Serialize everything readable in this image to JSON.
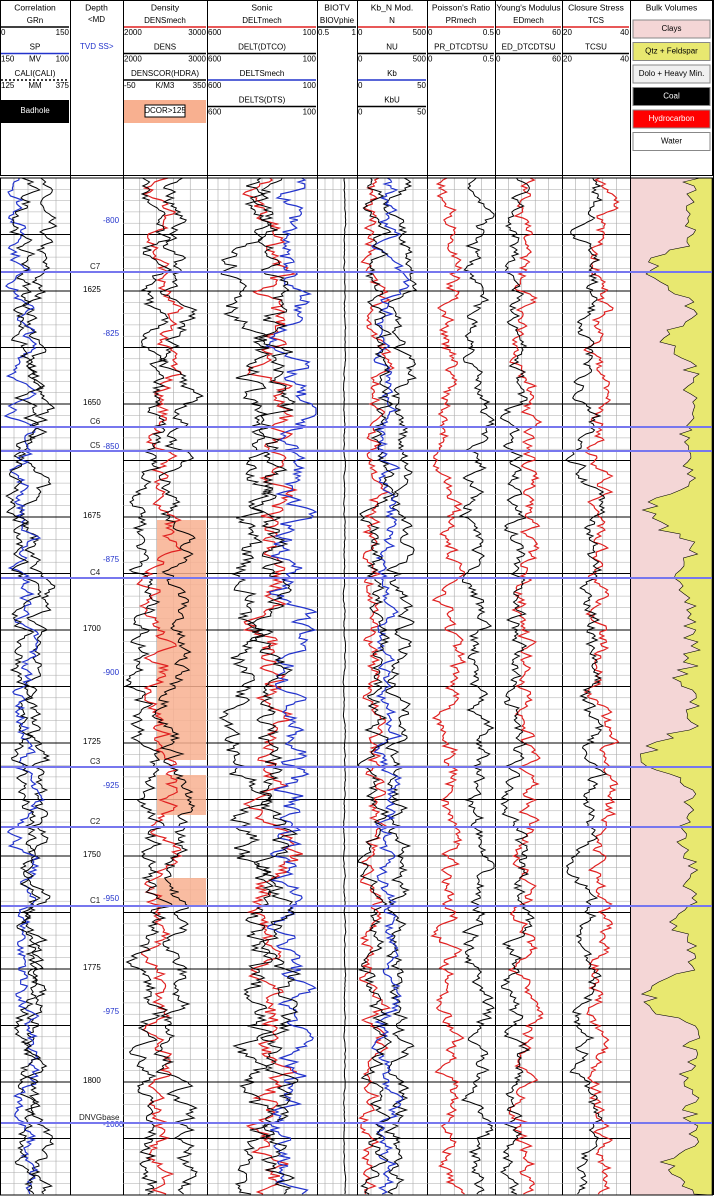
{
  "tracks": [
    {
      "title": "Correlation",
      "curves": [
        {
          "name": "GRn",
          "left": 0,
          "right": 150,
          "color": "#000"
        },
        {
          "name": "SP",
          "left": 150,
          "unit": "MV",
          "right": 100,
          "color": "#2233cc"
        },
        {
          "name": "CALI(CALI)",
          "left": 125,
          "unit": "MM",
          "right": 375,
          "color": "#000"
        }
      ],
      "flag": "Badhole"
    },
    {
      "title": "Depth",
      "labels": [
        "<MD",
        "TVD SS>"
      ]
    },
    {
      "title": "Density",
      "curves": [
        {
          "name": "DENSmech",
          "left": 2000,
          "right": 3000,
          "color": "#e02020"
        },
        {
          "name": "DENS",
          "left": 2000,
          "right": 3000,
          "color": "#000"
        },
        {
          "name": "DENSCOR(HDRA)",
          "left": -50,
          "unit": "K/M3",
          "right": 350,
          "color": "#000"
        }
      ],
      "flag": "DCOR>125"
    },
    {
      "title": "Sonic",
      "curves": [
        {
          "name": "DELTmech",
          "left": 600,
          "right": 100,
          "color": "#e02020"
        },
        {
          "name": "DELT(DTCO)",
          "left": 600,
          "right": 100,
          "color": "#000"
        },
        {
          "name": "DELTSmech",
          "left": 600,
          "right": 100,
          "color": "#2233cc"
        },
        {
          "name": "DELTS(DTS)",
          "left": 600,
          "right": 100,
          "color": "#000"
        }
      ]
    },
    {
      "title": "BIOTV",
      "curves": [
        {
          "name": "BIOVphie",
          "left": 0.5,
          "right": 1,
          "color": "#000"
        }
      ]
    },
    {
      "title": "Kb_N Mod.",
      "curves": [
        {
          "name": "N",
          "left": 0,
          "right": 500,
          "color": "#e02020"
        },
        {
          "name": "NU",
          "left": 0,
          "right": 500,
          "color": "#000"
        },
        {
          "name": "Kb",
          "left": 0,
          "right": 50,
          "color": "#2233cc"
        },
        {
          "name": "KbU",
          "left": 0,
          "right": 50,
          "color": "#000"
        }
      ]
    },
    {
      "title": "Poisson's Ratio",
      "curves": [
        {
          "name": "PRmech",
          "left": 0,
          "right": 0.5,
          "color": "#e02020"
        },
        {
          "name": "PR_DTCDTSU",
          "left": 0,
          "right": 0.5,
          "color": "#000"
        }
      ]
    },
    {
      "title": "Young's Modulus",
      "curves": [
        {
          "name": "EDmech",
          "left": 0,
          "right": 60,
          "color": "#e02020"
        },
        {
          "name": "ED_DTCDTSU",
          "left": 0,
          "right": 60,
          "color": "#000"
        }
      ]
    },
    {
      "title": "Closure Stress",
      "curves": [
        {
          "name": "TCS",
          "left": 20,
          "right": 40,
          "color": "#e02020"
        },
        {
          "name": "TCSU",
          "left": 20,
          "right": 40,
          "color": "#000"
        }
      ]
    },
    {
      "title": "Bulk Volumes",
      "legend": [
        {
          "name": "Clays",
          "color": "#f4d6d6"
        },
        {
          "name": "Qtz + Feldspar",
          "color": "#e8e870"
        },
        {
          "name": "Dolo + Heavy Min.",
          "color": "#f0f0f0"
        },
        {
          "name": "Coal",
          "color": "#000"
        },
        {
          "name": "Hydrocarbon",
          "color": "#ff0000"
        },
        {
          "name": "Water",
          "color": "#ffffff"
        }
      ]
    }
  ],
  "md": [
    1625,
    1650,
    1675,
    1700,
    1725,
    1750,
    1775,
    1800
  ],
  "tvd": [
    -800,
    -825,
    -850,
    -875,
    -900,
    -925,
    -950,
    -975,
    -1000
  ],
  "tops": [
    "C7",
    "C6",
    "C5",
    "C4",
    "C3",
    "C2",
    "C1",
    "DNVGbase"
  ]
}
